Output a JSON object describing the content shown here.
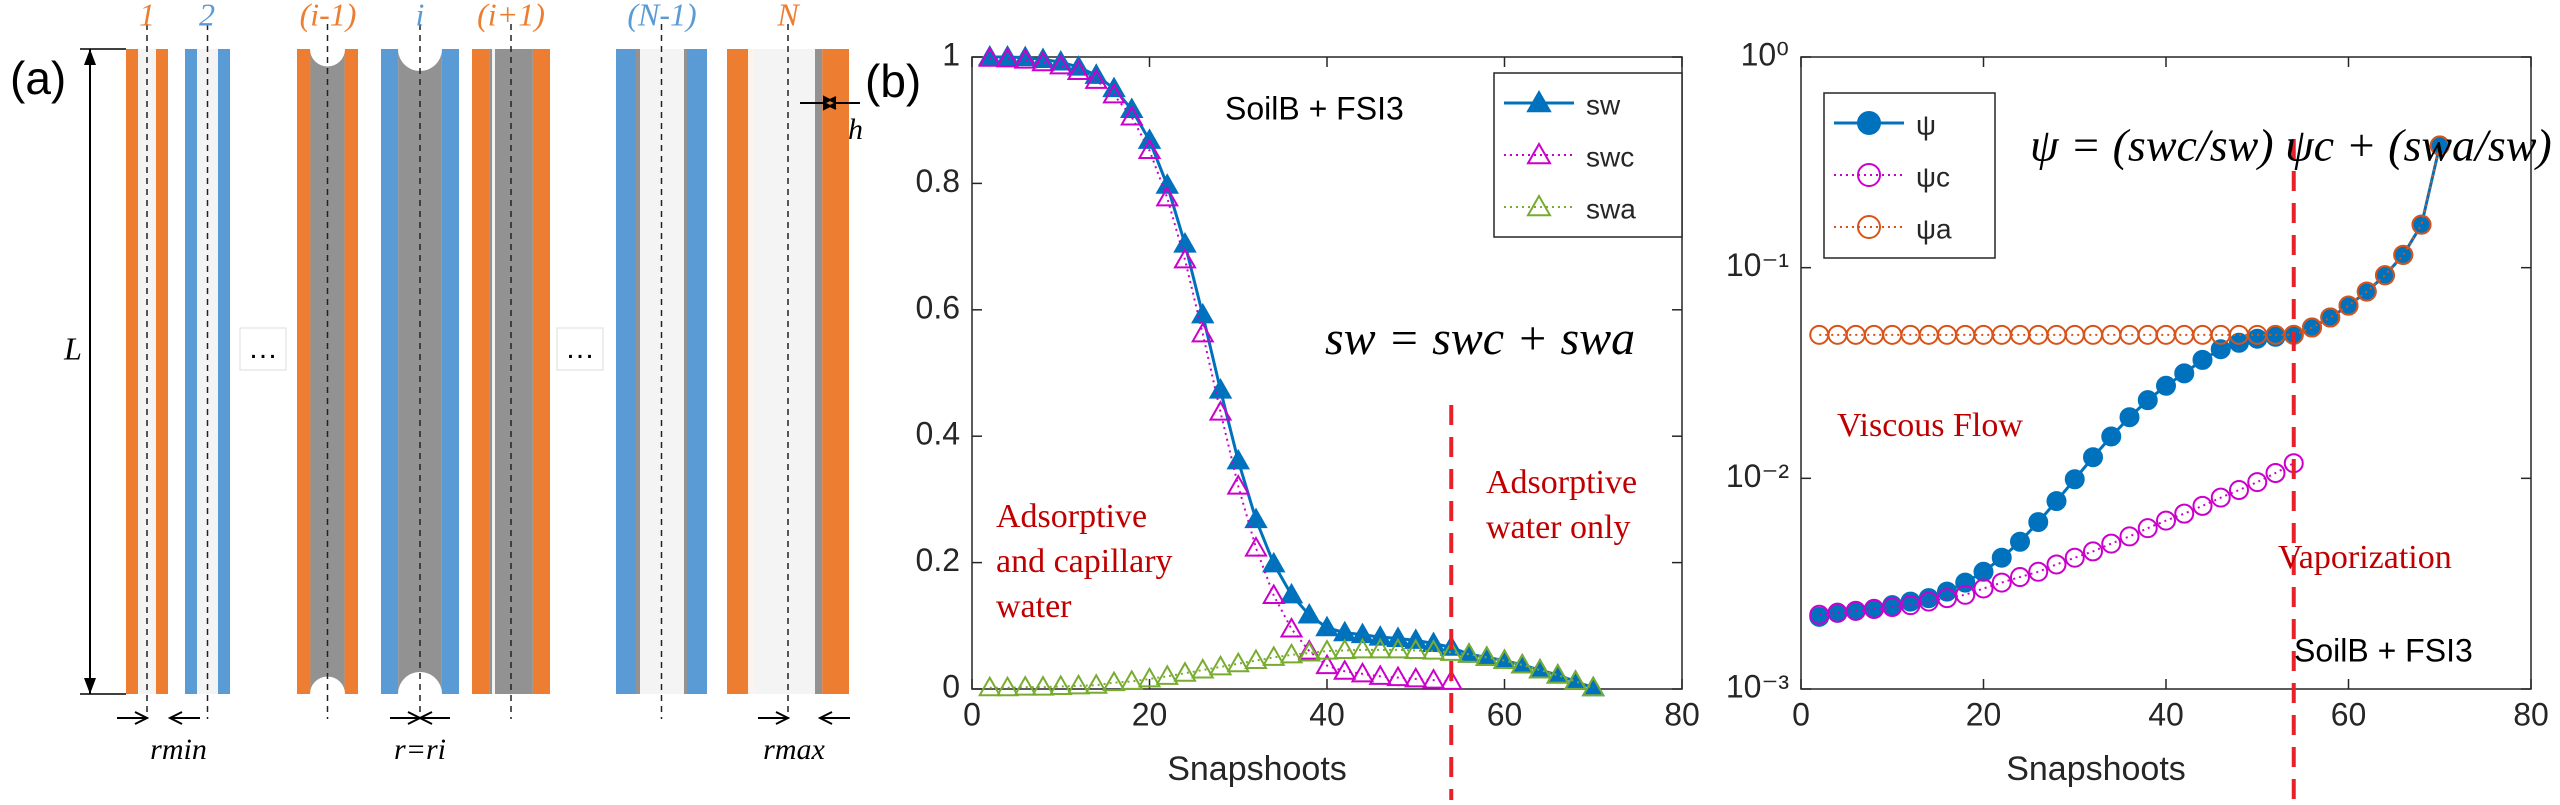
{
  "diagram": {
    "panel_label": "(a)",
    "tube_labels": [
      "1",
      "2",
      "(i-1)",
      "i",
      "(i+1)",
      "(N-1)",
      "N"
    ],
    "ellipses": [
      "…",
      "…"
    ],
    "length_label": "L",
    "thickness_label": "h",
    "radius_labels": [
      "rmin",
      "r=ri",
      "rmax"
    ]
  },
  "chart_data": [
    {
      "type": "line",
      "panel_label": "(b)",
      "title": "SoilB + FSI3",
      "equation": "sw = swc + swa",
      "xlabel": "Snapshoots",
      "annotations": [
        [
          "Adsorptive",
          "and capillary",
          "water"
        ],
        [
          "Adsorptive",
          "water only"
        ]
      ],
      "vline_x": 54,
      "vline_color": "#e8202a",
      "x": [
        2,
        4,
        6,
        8,
        10,
        12,
        14,
        16,
        18,
        20,
        22,
        24,
        26,
        28,
        30,
        32,
        34,
        36,
        38,
        40,
        42,
        44,
        46,
        48,
        50,
        52,
        54,
        56,
        58,
        60,
        62,
        64,
        66,
        68,
        70
      ],
      "xlim": [
        0,
        80
      ],
      "xticks": [
        0,
        20,
        40,
        60,
        80
      ],
      "ylim": [
        0,
        1
      ],
      "yticks": [
        0,
        0.2,
        0.4,
        0.6,
        0.8,
        1
      ],
      "log": false,
      "series": [
        {
          "name": "sw",
          "color": "#0072bd",
          "marker": "triangle",
          "filled": true,
          "linestyle": "solid",
          "values": [
            1.0,
            1.0,
            0.999,
            0.996,
            0.992,
            0.984,
            0.971,
            0.95,
            0.917,
            0.868,
            0.797,
            0.704,
            0.592,
            0.473,
            0.361,
            0.268,
            0.198,
            0.149,
            0.117,
            0.097,
            0.089,
            0.086,
            0.082,
            0.08,
            0.077,
            0.072,
            0.066,
            0.055,
            0.05,
            0.045,
            0.038,
            0.03,
            0.022,
            0.012,
            0.002
          ]
        },
        {
          "name": "swc",
          "color": "#cc00cc",
          "marker": "triangle",
          "filled": false,
          "linestyle": "dotted",
          "values": [
            0.998,
            0.997,
            0.995,
            0.991,
            0.986,
            0.977,
            0.963,
            0.94,
            0.905,
            0.852,
            0.777,
            0.679,
            0.562,
            0.438,
            0.321,
            0.223,
            0.148,
            0.095,
            0.06,
            0.037,
            0.028,
            0.024,
            0.02,
            0.018,
            0.016,
            0.014,
            0.012,
            null,
            null,
            null,
            null,
            null,
            null,
            null,
            null
          ]
        },
        {
          "name": "swa",
          "color": "#77ac30",
          "marker": "triangle",
          "filled": false,
          "linestyle": "dotted",
          "values": [
            0.002,
            0.002,
            0.003,
            0.003,
            0.004,
            0.005,
            0.006,
            0.01,
            0.012,
            0.016,
            0.02,
            0.025,
            0.03,
            0.035,
            0.04,
            0.045,
            0.05,
            0.054,
            0.057,
            0.06,
            0.061,
            0.062,
            0.062,
            0.062,
            0.061,
            0.06,
            0.058,
            0.055,
            0.05,
            0.045,
            0.038,
            0.03,
            0.022,
            0.012,
            0.002
          ]
        }
      ]
    },
    {
      "type": "line",
      "title": "SoilB + FSI3",
      "equation": "ψ = (swc/sw) ψc + (swa/sw) ψa",
      "xlabel": "Snapshoots",
      "annotations": [
        [
          "Viscous Flow"
        ],
        [
          "Vaporization"
        ]
      ],
      "vline_x": 54,
      "vline_color": "#e8202a",
      "x": [
        2,
        4,
        6,
        8,
        10,
        12,
        14,
        16,
        18,
        20,
        22,
        24,
        26,
        28,
        30,
        32,
        34,
        36,
        38,
        40,
        42,
        44,
        46,
        48,
        50,
        52,
        54,
        56,
        58,
        60,
        62,
        64,
        66,
        68,
        70
      ],
      "xlim": [
        0,
        80
      ],
      "xticks": [
        0,
        20,
        40,
        60,
        80
      ],
      "ylim": [
        0.001,
        1
      ],
      "log": true,
      "yticks": [
        {
          "value": 0.001,
          "label": "10⁻³"
        },
        {
          "value": 0.01,
          "label": "10⁻²"
        },
        {
          "value": 0.1,
          "label": "10⁻¹"
        },
        {
          "value": 1,
          "label": "10⁰"
        }
      ],
      "series": [
        {
          "name": "ψ",
          "color": "#0072bd",
          "marker": "circle",
          "filled": true,
          "linestyle": "solid",
          "values": [
            0.0022,
            0.0023,
            0.00235,
            0.0024,
            0.0025,
            0.0026,
            0.0027,
            0.0029,
            0.0032,
            0.0036,
            0.0042,
            0.005,
            0.0062,
            0.0078,
            0.0099,
            0.0126,
            0.0158,
            0.0195,
            0.0235,
            0.0275,
            0.0315,
            0.0365,
            0.041,
            0.044,
            0.046,
            0.047,
            0.048,
            0.052,
            0.058,
            0.066,
            0.077,
            0.092,
            0.115,
            0.16,
            0.38
          ]
        },
        {
          "name": "ψc",
          "color": "#cc00cc",
          "marker": "circle",
          "filled": false,
          "linestyle": "dotted",
          "values": [
            0.00225,
            0.0023,
            0.00235,
            0.0024,
            0.00245,
            0.0025,
            0.0026,
            0.0027,
            0.0028,
            0.003,
            0.0032,
            0.0034,
            0.0036,
            0.0039,
            0.0042,
            0.0045,
            0.0049,
            0.0053,
            0.0058,
            0.0063,
            0.0068,
            0.0074,
            0.0081,
            0.0088,
            0.0096,
            0.0106,
            0.0118,
            null,
            null,
            null,
            null,
            null,
            null,
            null,
            null
          ]
        },
        {
          "name": "ψa",
          "color": "#d95319",
          "marker": "circle",
          "filled": false,
          "linestyle": "dotted",
          "values": [
            0.048,
            0.048,
            0.048,
            0.048,
            0.048,
            0.048,
            0.048,
            0.048,
            0.048,
            0.048,
            0.048,
            0.048,
            0.048,
            0.048,
            0.048,
            0.048,
            0.048,
            0.048,
            0.048,
            0.048,
            0.048,
            0.048,
            0.048,
            0.048,
            0.048,
            0.048,
            0.048,
            0.052,
            0.058,
            0.066,
            0.077,
            0.092,
            0.115,
            0.16,
            0.38
          ]
        }
      ]
    }
  ]
}
